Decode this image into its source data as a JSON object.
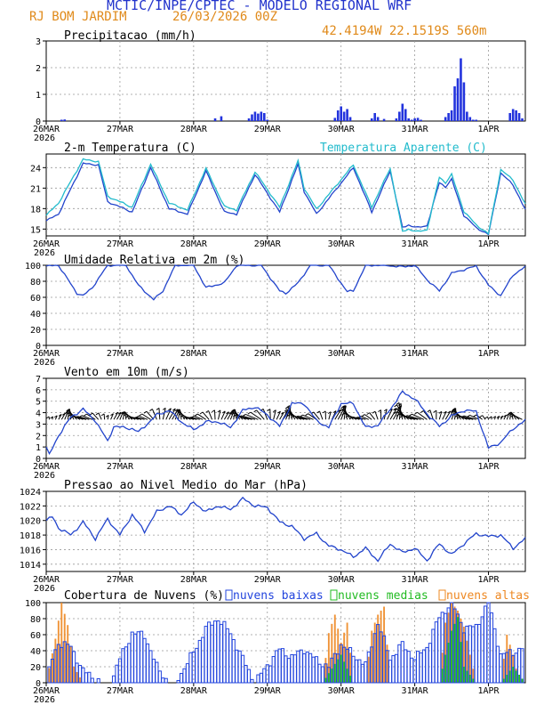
{
  "header": {
    "title": "MCTIC/INPE/CPTEC - MODELO REGIONAL WRF",
    "location": "RJ BOM JARDIM",
    "run": "26/03/2026 00Z",
    "coords": "42.4194W 22.1519S 560m",
    "title_color": "#2233cc",
    "sub_color": "#e08a1a"
  },
  "x_axis": {
    "labels": [
      "26MAR",
      "27MAR",
      "28MAR",
      "29MAR",
      "30MAR",
      "31MAR",
      "1APR"
    ],
    "year_label": "2026",
    "hours": 156,
    "tick_every_hours": 24
  },
  "chart_data": [
    {
      "type": "bar",
      "title": "Precipitacao (mm/h)",
      "ylim": [
        0,
        3
      ],
      "yticks": [
        0,
        1,
        2,
        3
      ],
      "color": "#2233dd",
      "x_hours": [
        5,
        6,
        55,
        57,
        66,
        67,
        68,
        69,
        70,
        71,
        72,
        94,
        95,
        96,
        97,
        98,
        99,
        106,
        107,
        108,
        110,
        114,
        115,
        116,
        117,
        118,
        119,
        120,
        121,
        122,
        130,
        131,
        132,
        133,
        134,
        135,
        136,
        137,
        138,
        139,
        140,
        151,
        152,
        153,
        154,
        155
      ],
      "values": [
        0.05,
        0.06,
        0.1,
        0.18,
        0.1,
        0.25,
        0.35,
        0.28,
        0.35,
        0.3,
        0.05,
        0.12,
        0.4,
        0.55,
        0.35,
        0.45,
        0.15,
        0.1,
        0.3,
        0.15,
        0.08,
        0.1,
        0.35,
        0.65,
        0.45,
        0.1,
        0.05,
        0.1,
        0.12,
        0.05,
        0.15,
        0.3,
        0.4,
        1.3,
        1.6,
        2.35,
        1.45,
        0.35,
        0.15,
        0.05,
        0.05,
        0.3,
        0.45,
        0.4,
        0.3,
        0.1
      ]
    },
    {
      "type": "line",
      "title": "2-m Temperatura (C)",
      "legend": "Temperatura Aparente (C)",
      "ylim": [
        14,
        26
      ],
      "yticks": [
        15,
        18,
        21,
        24
      ],
      "series": [
        {
          "name": "2-m Temperatura",
          "color": "#2244cc",
          "knots_hour": [
            0,
            4,
            12,
            17,
            20,
            28,
            34,
            40,
            46,
            52,
            58,
            62,
            68,
            76,
            82,
            84,
            88,
            100,
            106,
            112,
            116,
            118,
            121,
            124,
            128,
            130,
            132,
            136,
            140,
            144,
            148,
            152,
            156
          ],
          "knots_value": [
            16.2,
            17.2,
            24.6,
            24.4,
            19,
            17.5,
            24,
            18,
            17.2,
            23.5,
            17.5,
            17.2,
            23,
            17.5,
            24.5,
            20.5,
            17.2,
            24,
            17.5,
            23.5,
            15.2,
            15.6,
            15.2,
            15.5,
            21.8,
            21.2,
            22.3,
            17,
            15.2,
            14.2,
            23.2,
            21.5,
            17.8
          ]
        },
        {
          "name": "Temperatura Aparente",
          "color": "#22bbcc",
          "knots_hour": [
            0,
            4,
            12,
            17,
            20,
            28,
            34,
            40,
            46,
            52,
            58,
            62,
            68,
            76,
            82,
            84,
            88,
            100,
            106,
            112,
            116,
            118,
            121,
            124,
            128,
            130,
            132,
            136,
            140,
            144,
            148,
            152,
            156
          ],
          "knots_value": [
            17,
            18.8,
            25.2,
            24.9,
            19.8,
            18.2,
            24.5,
            18.8,
            17.8,
            23.9,
            18.3,
            17.8,
            23.4,
            18.2,
            25,
            21,
            17.9,
            24.4,
            18.2,
            23.9,
            14.6,
            15,
            14.6,
            14.9,
            22.6,
            21.8,
            23,
            17.6,
            15.6,
            14.3,
            23.7,
            22.2,
            18.6
          ]
        }
      ]
    },
    {
      "type": "line",
      "title": "Umidade Relativa em 2m (%)",
      "ylim": [
        0,
        100
      ],
      "yticks": [
        0,
        20,
        40,
        60,
        80,
        100
      ],
      "series": [
        {
          "name": "Umidade Relativa",
          "color": "#2244cc",
          "knots_hour": [
            0,
            4,
            10,
            12,
            15,
            20,
            26,
            30,
            35,
            38,
            42,
            48,
            52,
            58,
            62,
            70,
            76,
            78,
            82,
            86,
            92,
            98,
            100,
            104,
            110,
            116,
            120,
            124,
            128,
            132,
            140,
            144,
            148,
            152,
            156
          ],
          "knots_value": [
            99,
            100,
            65,
            62,
            72,
            100,
            100,
            75,
            57,
            68,
            100,
            100,
            72,
            78,
            100,
            100,
            68,
            65,
            78,
            100,
            100,
            67,
            68,
            100,
            100,
            98,
            100,
            82,
            68,
            90,
            99,
            75,
            62,
            88,
            98
          ]
        }
      ]
    },
    {
      "type": "line",
      "title": "Vento em 10m (m/s)",
      "ylim": [
        0,
        7
      ],
      "yticks": [
        0,
        1,
        2,
        3,
        4,
        5,
        6,
        7
      ],
      "series": [
        {
          "name": "Vento em 10m",
          "color": "#2244cc",
          "knots_hour": [
            0,
            1,
            4,
            8,
            12,
            16,
            20,
            22,
            28,
            30,
            36,
            40,
            44,
            48,
            52,
            56,
            60,
            64,
            68,
            72,
            76,
            80,
            84,
            88,
            92,
            96,
            100,
            104,
            108,
            112,
            116,
            120,
            124,
            128,
            132,
            136,
            140,
            144,
            148,
            152,
            156
          ],
          "knots_value": [
            1,
            0.3,
            2,
            3.6,
            4.3,
            3.3,
            1.5,
            2.8,
            2.6,
            2.3,
            3.8,
            4.2,
            3.2,
            2.5,
            3.2,
            3.2,
            2.7,
            4.2,
            4.5,
            3.8,
            2.8,
            4.8,
            4.8,
            3.3,
            2.7,
            4.8,
            4.8,
            2.7,
            2.9,
            4.3,
            5.8,
            5.2,
            3.9,
            2.8,
            3.7,
            4.2,
            4.1,
            0.9,
            1.4,
            2.6,
            3.3
          ]
        }
      ]
    },
    {
      "type": "line",
      "title": "Pressao ao Nivel Medio do Mar (hPa)",
      "ylim": [
        1013,
        1024
      ],
      "yticks": [
        1014,
        1016,
        1018,
        1020,
        1022,
        1024
      ],
      "series": [
        {
          "name": "Pressao",
          "color": "#2244cc",
          "knots_hour": [
            0,
            2,
            4,
            8,
            12,
            16,
            20,
            24,
            28,
            32,
            36,
            40,
            44,
            48,
            52,
            56,
            60,
            64,
            68,
            72,
            76,
            80,
            84,
            88,
            92,
            96,
            100,
            104,
            108,
            112,
            116,
            120,
            124,
            128,
            132,
            136,
            140,
            144,
            148,
            152,
            156
          ],
          "knots_value": [
            1020,
            1020.5,
            1019,
            1018,
            1019.8,
            1017.5,
            1020.2,
            1018,
            1020.8,
            1018.5,
            1021.2,
            1022,
            1020.8,
            1022.5,
            1021.2,
            1022,
            1021.5,
            1023,
            1022,
            1021.8,
            1019.8,
            1019.2,
            1017.5,
            1018.2,
            1016.5,
            1016,
            1015,
            1016.2,
            1014.5,
            1016.8,
            1015.6,
            1016.2,
            1014.5,
            1016.8,
            1015.3,
            1016.8,
            1018.2,
            1017.8,
            1018,
            1016.2,
            1017.5
          ]
        }
      ]
    },
    {
      "type": "bar",
      "title": "Cobertura de Nuvens (%)",
      "ylim": [
        0,
        100
      ],
      "yticks": [
        0,
        20,
        40,
        60,
        80,
        100
      ],
      "legend": [
        {
          "name": "nuvens baixas",
          "color": "#2244dd"
        },
        {
          "name": "nuvens medias",
          "color": "#22bb22"
        },
        {
          "name": "nuvens altas",
          "color": "#ee8822"
        }
      ],
      "series": [
        {
          "name": "nuvens baixas",
          "knots_hour": [
            0,
            2,
            4,
            8,
            12,
            18,
            21,
            24,
            28,
            32,
            36,
            40,
            42,
            48,
            52,
            56,
            60,
            64,
            68,
            72,
            76,
            80,
            84,
            88,
            92,
            96,
            100,
            104,
            108,
            112,
            116,
            120,
            124,
            128,
            132,
            136,
            140,
            144,
            148,
            152,
            156
          ],
          "knots_value": [
            0,
            30,
            50,
            45,
            15,
            0,
            0,
            30,
            62,
            60,
            20,
            0,
            0,
            38,
            68,
            80,
            62,
            30,
            0,
            22,
            42,
            32,
            42,
            28,
            20,
            48,
            35,
            22,
            75,
            30,
            48,
            30,
            45,
            82,
            100,
            68,
            70,
            100,
            35,
            38,
            45
          ]
        },
        {
          "name": "nuvens medias",
          "knots_hour": [
            0,
            10,
            90,
            92,
            96,
            100,
            128,
            130,
            132,
            134,
            136,
            140,
            148,
            152,
            156
          ],
          "knots_value": [
            0,
            0,
            0,
            12,
            35,
            0,
            0,
            35,
            65,
            82,
            20,
            0,
            0,
            20,
            0
          ]
        },
        {
          "name": "nuvens altas",
          "knots_hour": [
            0,
            3,
            5,
            7,
            9,
            12,
            90,
            92,
            94,
            96,
            98,
            100,
            104,
            106,
            108,
            110,
            112,
            128,
            130,
            132,
            134,
            136,
            140,
            148,
            150,
            152,
            154,
            156
          ],
          "knots_value": [
            0,
            55,
            100,
            72,
            20,
            0,
            0,
            62,
            85,
            50,
            75,
            0,
            0,
            65,
            85,
            95,
            0,
            0,
            75,
            100,
            90,
            70,
            0,
            0,
            60,
            35,
            0,
            0
          ]
        }
      ]
    }
  ]
}
